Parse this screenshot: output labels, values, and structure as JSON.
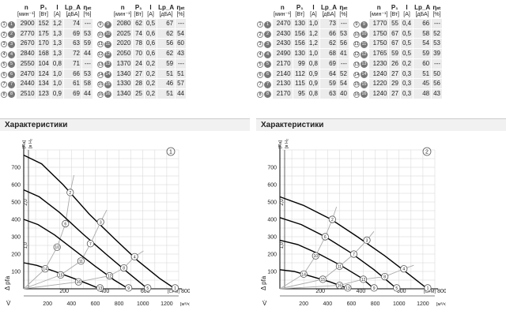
{
  "table_headers": {
    "n": "n",
    "n_unit": "[мин⁻¹]",
    "p": "P₁",
    "p_unit": "[Вт]",
    "i": "I",
    "i_unit": "[A]",
    "lp": "Lp_A",
    "lp_unit": "[дБА]",
    "eta": "ηₛₜ",
    "eta_unit": "[%]"
  },
  "left_table": {
    "rows_a": [
      {
        "idx": "1",
        "mark": "1",
        "n": "2900",
        "p": "152",
        "i": "1,2",
        "lp": "74",
        "eta": "---"
      },
      {
        "idx": "2",
        "mark": "2",
        "n": "2770",
        "p": "175",
        "i": "1,3",
        "lp": "69",
        "eta": "53"
      },
      {
        "idx": "3",
        "mark": "3",
        "n": "2670",
        "p": "170",
        "i": "1,3",
        "lp": "63",
        "eta": "59"
      },
      {
        "idx": "4",
        "mark": "4",
        "n": "2840",
        "p": "168",
        "i": "1,3",
        "lp": "72",
        "eta": "44"
      },
      {
        "idx": "5",
        "mark": "5",
        "n": "2550",
        "p": "104",
        "i": "0,8",
        "lp": "71",
        "eta": "---"
      },
      {
        "idx": "6",
        "mark": "6",
        "n": "2470",
        "p": "124",
        "i": "1,0",
        "lp": "66",
        "eta": "53"
      },
      {
        "idx": "7",
        "mark": "7",
        "n": "2440",
        "p": "134",
        "i": "1,0",
        "lp": "61",
        "eta": "58"
      },
      {
        "idx": "8",
        "mark": "8",
        "n": "2510",
        "p": "123",
        "i": "0,9",
        "lp": "69",
        "eta": "44"
      }
    ],
    "rows_b": [
      {
        "idx": "9",
        "mark": "9",
        "n": "2080",
        "p": "62",
        "i": "0,5",
        "lp": "67",
        "eta": "---"
      },
      {
        "idx": "10",
        "mark": "10",
        "n": "2025",
        "p": "74",
        "i": "0,6",
        "lp": "62",
        "eta": "54"
      },
      {
        "idx": "11",
        "mark": "11",
        "n": "2020",
        "p": "78",
        "i": "0,6",
        "lp": "56",
        "eta": "60"
      },
      {
        "idx": "12",
        "mark": "12",
        "n": "2050",
        "p": "70",
        "i": "0,6",
        "lp": "62",
        "eta": "43"
      },
      {
        "idx": "13",
        "mark": "13",
        "n": "1370",
        "p": "24",
        "i": "0,2",
        "lp": "59",
        "eta": "---"
      },
      {
        "idx": "14",
        "mark": "14",
        "n": "1340",
        "p": "27",
        "i": "0,2",
        "lp": "51",
        "eta": "51"
      },
      {
        "idx": "15",
        "mark": "15",
        "n": "1330",
        "p": "28",
        "i": "0,2",
        "lp": "46",
        "eta": "57"
      },
      {
        "idx": "16",
        "mark": "16",
        "n": "1340",
        "p": "25",
        "i": "0,2",
        "lp": "51",
        "eta": "44"
      }
    ]
  },
  "right_table": {
    "rows_a": [
      {
        "idx": "1",
        "mark": "1",
        "n": "2470",
        "p": "130",
        "i": "1,0",
        "lp": "73",
        "eta": "---"
      },
      {
        "idx": "2",
        "mark": "2",
        "n": "2430",
        "p": "156",
        "i": "1,2",
        "lp": "66",
        "eta": "53"
      },
      {
        "idx": "3",
        "mark": "3",
        "n": "2430",
        "p": "156",
        "i": "1,2",
        "lp": "62",
        "eta": "56"
      },
      {
        "idx": "4",
        "mark": "4",
        "n": "2490",
        "p": "130",
        "i": "1,0",
        "lp": "68",
        "eta": "41"
      },
      {
        "idx": "5",
        "mark": "5",
        "n": "2170",
        "p": "99",
        "i": "0,8",
        "lp": "69",
        "eta": "---"
      },
      {
        "idx": "6",
        "mark": "6",
        "n": "2140",
        "p": "112",
        "i": "0,9",
        "lp": "64",
        "eta": "52"
      },
      {
        "idx": "7",
        "mark": "7",
        "n": "2130",
        "p": "115",
        "i": "0,9",
        "lp": "59",
        "eta": "54"
      },
      {
        "idx": "8",
        "mark": "8",
        "n": "2170",
        "p": "95",
        "i": "0,8",
        "lp": "63",
        "eta": "40"
      }
    ],
    "rows_b": [
      {
        "idx": "9",
        "mark": "9",
        "n": "1770",
        "p": "55",
        "i": "0,4",
        "lp": "66",
        "eta": "---"
      },
      {
        "idx": "10",
        "mark": "10",
        "n": "1750",
        "p": "67",
        "i": "0,5",
        "lp": "58",
        "eta": "52"
      },
      {
        "idx": "11",
        "mark": "11",
        "n": "1750",
        "p": "67",
        "i": "0,5",
        "lp": "54",
        "eta": "53"
      },
      {
        "idx": "12",
        "mark": "12",
        "n": "1765",
        "p": "59",
        "i": "0,5",
        "lp": "59",
        "eta": "39"
      },
      {
        "idx": "13",
        "mark": "13",
        "n": "1230",
        "p": "26",
        "i": "0,2",
        "lp": "60",
        "eta": "---"
      },
      {
        "idx": "14",
        "mark": "14",
        "n": "1240",
        "p": "27",
        "i": "0,3",
        "lp": "51",
        "eta": "50"
      },
      {
        "idx": "15",
        "mark": "15",
        "n": "1220",
        "p": "29",
        "i": "0,3",
        "lp": "45",
        "eta": "56"
      },
      {
        "idx": "16",
        "mark": "16",
        "n": "1240",
        "p": "27",
        "i": "0,3",
        "lp": "48",
        "eta": "43"
      }
    ]
  },
  "left_section_title": "Характеристики",
  "right_section_title": "Характеристики",
  "chart_data": [
    {
      "type": "line",
      "badge": "1",
      "y_unit": "[Па]",
      "y2_unit": "[в H₂O]",
      "x_unit_cfm": "[CFM]",
      "x_unit_m3h": "[м³/ч]",
      "y_axis_label": "Δ pfa",
      "x_axis_label": "V̇",
      "ylim": [
        0,
        800
      ],
      "xlim_m3h": [
        0,
        1300
      ],
      "y_ticks": [
        100,
        200,
        300,
        400,
        500,
        600,
        700
      ],
      "y2_ticks": [
        {
          "label": "1,0",
          "pa": 249
        },
        {
          "label": "2,0",
          "pa": 498
        }
      ],
      "x_ticks_m3h": [
        200,
        400,
        600,
        800,
        1000,
        1200
      ],
      "x_ticks_cfm": [
        200,
        400,
        600,
        800
      ],
      "curves": [
        {
          "label": "1",
          "points": [
            [
              0,
              770
            ],
            [
              150,
              720
            ],
            [
              330,
              600
            ],
            [
              550,
              430
            ],
            [
              760,
              290
            ],
            [
              960,
              160
            ],
            [
              1140,
              60
            ],
            [
              1270,
              0
            ]
          ]
        },
        {
          "label": "2",
          "points": [
            [
              0,
              570
            ],
            [
              130,
              530
            ],
            [
              300,
              440
            ],
            [
              490,
              320
            ],
            [
              690,
              200
            ],
            [
              880,
              90
            ],
            [
              1040,
              0
            ]
          ]
        },
        {
          "label": "3",
          "points": [
            [
              0,
              400
            ],
            [
              120,
              370
            ],
            [
              260,
              310
            ],
            [
              430,
              220
            ],
            [
              600,
              130
            ],
            [
              760,
              50
            ],
            [
              880,
              0
            ]
          ]
        },
        {
          "label": "4",
          "points": [
            [
              0,
              150
            ],
            [
              110,
              135
            ],
            [
              240,
              105
            ],
            [
              400,
              65
            ],
            [
              540,
              28
            ],
            [
              640,
              0
            ]
          ]
        }
      ],
      "markers": [
        {
          "label": "2",
          "x": 390,
          "y": 555
        },
        {
          "label": "3",
          "x": 645,
          "y": 385
        },
        {
          "label": "4",
          "x": 930,
          "y": 185
        },
        {
          "label": "6",
          "x": 350,
          "y": 375
        },
        {
          "label": "7",
          "x": 560,
          "y": 260
        },
        {
          "label": "8",
          "x": 840,
          "y": 120
        },
        {
          "label": "10",
          "x": 280,
          "y": 240
        },
        {
          "label": "11",
          "x": 480,
          "y": 160
        },
        {
          "label": "12",
          "x": 720,
          "y": 75
        },
        {
          "label": "14",
          "x": 180,
          "y": 115
        },
        {
          "label": "15",
          "x": 310,
          "y": 80
        },
        {
          "label": "16",
          "x": 460,
          "y": 40
        },
        {
          "label": "5",
          "x": 1040,
          "y": 5
        },
        {
          "label": "9",
          "x": 880,
          "y": 5
        },
        {
          "label": "13",
          "x": 640,
          "y": 5
        },
        {
          "label": "1",
          "x": 1270,
          "y": 5
        }
      ]
    },
    {
      "type": "line",
      "badge": "2",
      "y_unit": "[Па]",
      "y2_unit": "[в H₂O]",
      "x_unit_cfm": "[CFM]",
      "x_unit_m3h": "[м³/ч]",
      "y_axis_label": "Δ pfa",
      "x_axis_label": "V̇",
      "ylim": [
        0,
        800
      ],
      "xlim_m3h": [
        0,
        1300
      ],
      "y_ticks": [
        100,
        200,
        300,
        400,
        500,
        600,
        700
      ],
      "y2_ticks": [
        {
          "label": "1,0",
          "pa": 249
        },
        {
          "label": "2,0",
          "pa": 498
        }
      ],
      "x_ticks_m3h": [
        200,
        400,
        600,
        800,
        1000,
        1200
      ],
      "x_ticks_cfm": [
        200,
        400,
        600,
        800
      ],
      "curves": [
        {
          "label": "1",
          "points": [
            [
              0,
              530
            ],
            [
              200,
              480
            ],
            [
              430,
              400
            ],
            [
              650,
              300
            ],
            [
              880,
              190
            ],
            [
              1070,
              90
            ],
            [
              1200,
              20
            ],
            [
              1240,
              0
            ]
          ]
        },
        {
          "label": "2",
          "points": [
            [
              0,
              410
            ],
            [
              180,
              370
            ],
            [
              380,
              300
            ],
            [
              590,
              210
            ],
            [
              790,
              110
            ],
            [
              930,
              30
            ],
            [
              980,
              0
            ]
          ]
        },
        {
          "label": "3",
          "points": [
            [
              0,
              280
            ],
            [
              150,
              255
            ],
            [
              330,
              200
            ],
            [
              510,
              135
            ],
            [
              690,
              60
            ],
            [
              790,
              0
            ]
          ]
        },
        {
          "label": "4",
          "points": [
            [
              0,
              110
            ],
            [
              120,
              100
            ],
            [
              270,
              70
            ],
            [
              420,
              40
            ],
            [
              540,
              10
            ],
            [
              570,
              0
            ]
          ]
        }
      ],
      "markers": [
        {
          "label": "2",
          "x": 440,
          "y": 400
        },
        {
          "label": "3",
          "x": 730,
          "y": 280
        },
        {
          "label": "4",
          "x": 1040,
          "y": 115
        },
        {
          "label": "6",
          "x": 380,
          "y": 300
        },
        {
          "label": "7",
          "x": 620,
          "y": 200
        },
        {
          "label": "8",
          "x": 880,
          "y": 70
        },
        {
          "label": "10",
          "x": 300,
          "y": 190
        },
        {
          "label": "11",
          "x": 500,
          "y": 130
        },
        {
          "label": "12",
          "x": 700,
          "y": 55
        },
        {
          "label": "14",
          "x": 200,
          "y": 85
        },
        {
          "label": "15",
          "x": 360,
          "y": 55
        },
        {
          "label": "16",
          "x": 500,
          "y": 20
        },
        {
          "label": "5",
          "x": 980,
          "y": 5
        },
        {
          "label": "9",
          "x": 790,
          "y": 5
        },
        {
          "label": "13",
          "x": 570,
          "y": 5
        },
        {
          "label": "1",
          "x": 1240,
          "y": 5
        }
      ]
    }
  ]
}
